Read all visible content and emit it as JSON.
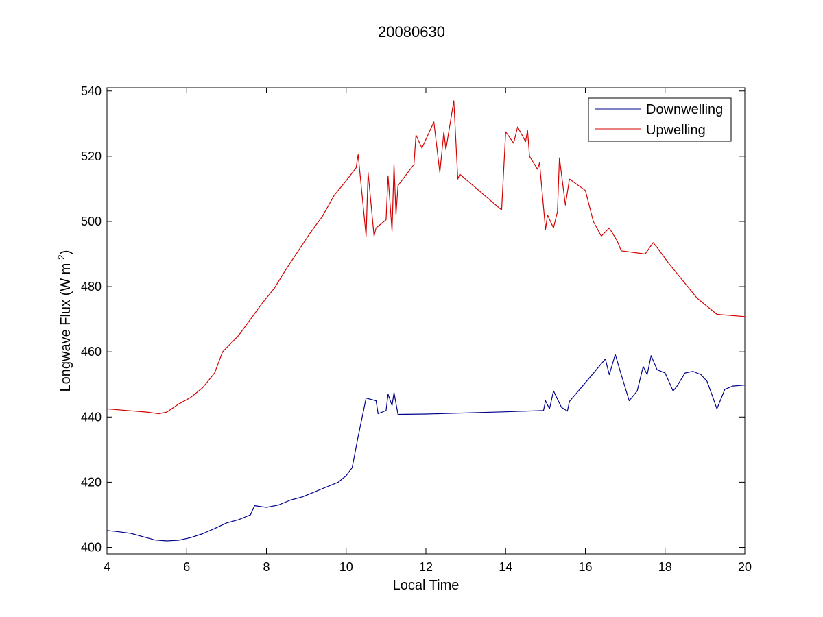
{
  "chart_data": {
    "type": "line",
    "title": "20080630",
    "xlabel": "Local Time",
    "ylabel": {
      "prefix": "Longwave Flux (W m",
      "superscript": "-2",
      "suffix": ")"
    },
    "xlim": [
      4,
      20
    ],
    "ylim": [
      398,
      541
    ],
    "xticks": [
      4,
      6,
      8,
      10,
      12,
      14,
      16,
      18,
      20
    ],
    "yticks": [
      400,
      420,
      440,
      460,
      480,
      500,
      520,
      540
    ],
    "grid": false,
    "legend_position": "top-right",
    "series": [
      {
        "name": "Downwelling",
        "color": "#00008B",
        "points": [
          [
            4.0,
            405.2
          ],
          [
            4.3,
            404.8
          ],
          [
            4.6,
            404.3
          ],
          [
            4.9,
            403.3
          ],
          [
            5.2,
            402.3
          ],
          [
            5.5,
            402.0
          ],
          [
            5.8,
            402.2
          ],
          [
            6.1,
            403.0
          ],
          [
            6.4,
            404.2
          ],
          [
            6.7,
            405.8
          ],
          [
            7.0,
            407.5
          ],
          [
            7.3,
            408.5
          ],
          [
            7.6,
            410.0
          ],
          [
            7.7,
            412.8
          ],
          [
            8.0,
            412.3
          ],
          [
            8.3,
            413.0
          ],
          [
            8.6,
            414.5
          ],
          [
            8.9,
            415.5
          ],
          [
            9.2,
            417.0
          ],
          [
            9.5,
            418.5
          ],
          [
            9.8,
            420.0
          ],
          [
            10.0,
            422.0
          ],
          [
            10.15,
            424.5
          ],
          [
            10.3,
            434.0
          ],
          [
            10.5,
            445.8
          ],
          [
            10.75,
            445.0
          ],
          [
            10.8,
            441.0
          ],
          [
            11.0,
            442.0
          ],
          [
            11.05,
            447.0
          ],
          [
            11.15,
            443.5
          ],
          [
            11.2,
            447.5
          ],
          [
            11.3,
            440.8
          ],
          [
            12.0,
            440.9
          ],
          [
            14.0,
            441.6
          ],
          [
            14.95,
            442.0
          ],
          [
            15.0,
            445.0
          ],
          [
            15.1,
            442.5
          ],
          [
            15.2,
            448.0
          ],
          [
            15.4,
            443.0
          ],
          [
            15.55,
            441.8
          ],
          [
            15.6,
            444.8
          ],
          [
            16.0,
            450.5
          ],
          [
            16.5,
            457.8
          ],
          [
            16.6,
            453.0
          ],
          [
            16.75,
            459.2
          ],
          [
            16.9,
            453.0
          ],
          [
            17.1,
            445.0
          ],
          [
            17.3,
            448.0
          ],
          [
            17.45,
            455.5
          ],
          [
            17.55,
            453.0
          ],
          [
            17.65,
            458.8
          ],
          [
            17.8,
            454.5
          ],
          [
            18.0,
            453.5
          ],
          [
            18.2,
            448.0
          ],
          [
            18.3,
            449.5
          ],
          [
            18.5,
            453.5
          ],
          [
            18.7,
            454.0
          ],
          [
            18.9,
            453.0
          ],
          [
            19.05,
            451.0
          ],
          [
            19.2,
            446.0
          ],
          [
            19.3,
            442.5
          ],
          [
            19.5,
            448.5
          ],
          [
            19.7,
            449.5
          ],
          [
            20.0,
            449.8
          ]
        ]
      },
      {
        "name": "Upwelling",
        "color": "#D40000",
        "points": [
          [
            4.0,
            442.5
          ],
          [
            4.5,
            442.0
          ],
          [
            5.0,
            441.5
          ],
          [
            5.3,
            441.0
          ],
          [
            5.5,
            441.5
          ],
          [
            5.8,
            444.0
          ],
          [
            6.1,
            446.0
          ],
          [
            6.4,
            449.0
          ],
          [
            6.7,
            453.5
          ],
          [
            6.9,
            460.0
          ],
          [
            7.3,
            465.0
          ],
          [
            7.6,
            470.0
          ],
          [
            7.9,
            475.0
          ],
          [
            8.2,
            479.5
          ],
          [
            8.5,
            485.5
          ],
          [
            8.8,
            491.0
          ],
          [
            9.1,
            496.5
          ],
          [
            9.4,
            501.5
          ],
          [
            9.7,
            508.0
          ],
          [
            10.0,
            512.5
          ],
          [
            10.25,
            516.5
          ],
          [
            10.3,
            520.5
          ],
          [
            10.4,
            508.0
          ],
          [
            10.5,
            495.5
          ],
          [
            10.55,
            515.0
          ],
          [
            10.7,
            495.5
          ],
          [
            10.75,
            498.0
          ],
          [
            11.0,
            500.5
          ],
          [
            11.05,
            514.0
          ],
          [
            11.15,
            497.0
          ],
          [
            11.2,
            517.5
          ],
          [
            11.25,
            502.0
          ],
          [
            11.3,
            511.0
          ],
          [
            11.7,
            517.5
          ],
          [
            11.75,
            526.5
          ],
          [
            11.9,
            522.5
          ],
          [
            12.2,
            530.5
          ],
          [
            12.35,
            515.0
          ],
          [
            12.45,
            527.5
          ],
          [
            12.5,
            522.0
          ],
          [
            12.7,
            537.0
          ],
          [
            12.8,
            513.0
          ],
          [
            12.85,
            514.5
          ],
          [
            13.9,
            503.5
          ],
          [
            14.0,
            527.5
          ],
          [
            14.2,
            524.0
          ],
          [
            14.3,
            529.0
          ],
          [
            14.5,
            524.5
          ],
          [
            14.55,
            528.0
          ],
          [
            14.6,
            520.0
          ],
          [
            14.8,
            516.0
          ],
          [
            14.85,
            518.0
          ],
          [
            15.0,
            497.5
          ],
          [
            15.05,
            502.0
          ],
          [
            15.2,
            498.0
          ],
          [
            15.3,
            503.0
          ],
          [
            15.35,
            519.5
          ],
          [
            15.5,
            505.0
          ],
          [
            15.6,
            513.0
          ],
          [
            16.0,
            509.5
          ],
          [
            16.2,
            500.0
          ],
          [
            16.4,
            495.5
          ],
          [
            16.6,
            498.0
          ],
          [
            16.8,
            494.0
          ],
          [
            16.9,
            491.0
          ],
          [
            17.5,
            490.0
          ],
          [
            17.7,
            493.5
          ],
          [
            17.8,
            492.0
          ],
          [
            18.1,
            487.0
          ],
          [
            18.5,
            481.0
          ],
          [
            18.8,
            476.5
          ],
          [
            19.1,
            473.5
          ],
          [
            19.3,
            471.5
          ],
          [
            19.6,
            471.2
          ],
          [
            20.0,
            470.8
          ]
        ]
      }
    ]
  }
}
